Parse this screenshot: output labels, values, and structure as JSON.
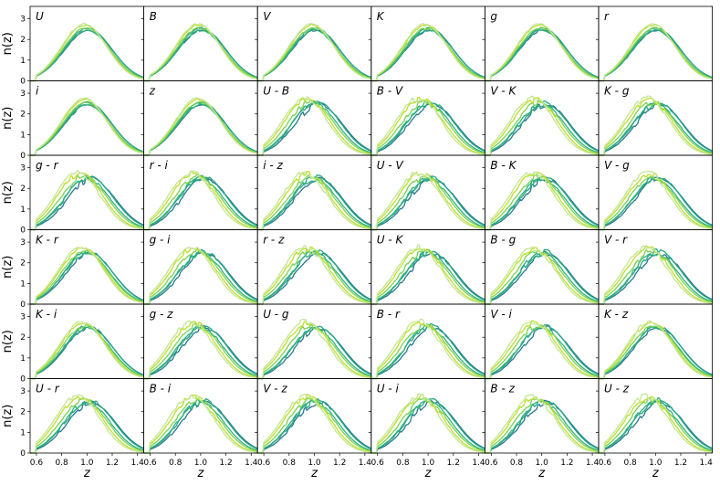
{
  "chart_data": {
    "type": "line",
    "xlabel": "z",
    "ylabel": "n(z)",
    "xlim": [
      0.55,
      1.45
    ],
    "ylim": [
      0,
      3.6
    ],
    "x_ticks": [
      "0.6",
      "0.8",
      "1.0",
      "1.2",
      "1.4"
    ],
    "y_ticks": [
      "0",
      "1",
      "2",
      "3"
    ],
    "grid": false,
    "legend": "none",
    "series_colors": [
      "#2a788e",
      "#22a884",
      "#2db27d",
      "#7ad151",
      "#bddf26",
      "#c2e699"
    ],
    "panels": [
      {
        "title": "U",
        "spread": 0.3
      },
      {
        "title": "B",
        "spread": 0.3
      },
      {
        "title": "V",
        "spread": 0.3
      },
      {
        "title": "K",
        "spread": 0.35
      },
      {
        "title": "g",
        "spread": 0.3
      },
      {
        "title": "r",
        "spread": 0.3
      },
      {
        "title": "i",
        "spread": 0.3
      },
      {
        "title": "z",
        "spread": 0.3
      },
      {
        "title": "U - B",
        "spread": 1.0
      },
      {
        "title": "B - V",
        "spread": 1.0
      },
      {
        "title": "V - K",
        "spread": 1.0
      },
      {
        "title": "K - g",
        "spread": 0.9
      },
      {
        "title": "g - r",
        "spread": 1.0
      },
      {
        "title": "r - i",
        "spread": 1.0
      },
      {
        "title": "i - z",
        "spread": 1.0
      },
      {
        "title": "U - V",
        "spread": 1.0
      },
      {
        "title": "B - K",
        "spread": 1.0
      },
      {
        "title": "V - g",
        "spread": 0.9
      },
      {
        "title": "K - r",
        "spread": 0.6
      },
      {
        "title": "g - i",
        "spread": 1.0
      },
      {
        "title": "r - z",
        "spread": 1.0
      },
      {
        "title": "U - K",
        "spread": 1.0
      },
      {
        "title": "B - g",
        "spread": 1.0
      },
      {
        "title": "V - r",
        "spread": 1.0
      },
      {
        "title": "K - i",
        "spread": 0.5
      },
      {
        "title": "g - z",
        "spread": 1.0
      },
      {
        "title": "U - g",
        "spread": 1.0
      },
      {
        "title": "B - r",
        "spread": 1.0
      },
      {
        "title": "V - i",
        "spread": 1.0
      },
      {
        "title": "K - z",
        "spread": 0.6
      },
      {
        "title": "U - r",
        "spread": 1.0
      },
      {
        "title": "B - i",
        "spread": 1.0
      },
      {
        "title": "V - z",
        "spread": 1.0
      },
      {
        "title": "U - i",
        "spread": 1.0
      },
      {
        "title": "B - z",
        "spread": 1.0
      },
      {
        "title": "U - z",
        "spread": 1.0
      }
    ]
  }
}
